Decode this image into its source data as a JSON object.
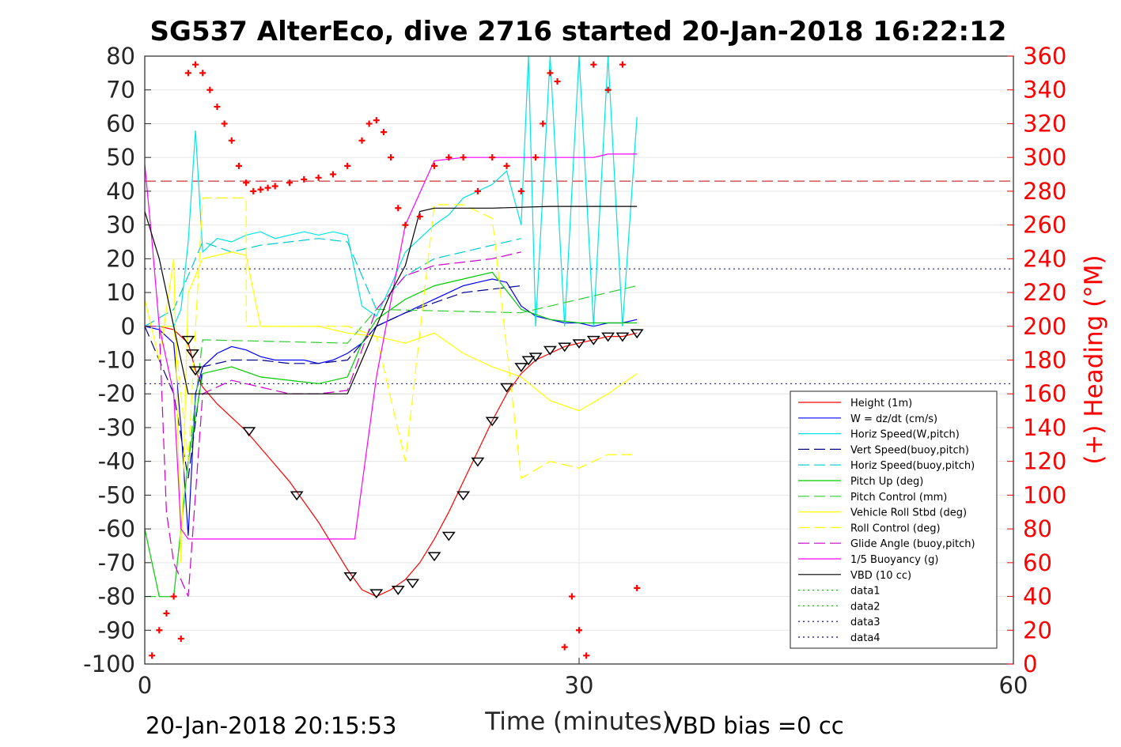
{
  "chart_data": {
    "type": "line",
    "title": "SG537 AlterEco, dive 2716 started 20-Jan-2018 16:22:12",
    "xlabel": "Time (minutes)",
    "ylabel_right": "(+) Heading (°M)",
    "xlim": [
      0,
      60
    ],
    "ylim": [
      -100,
      80
    ],
    "ylim_right": [
      0,
      360
    ],
    "x_ticks": [
      0,
      30,
      60
    ],
    "y_ticks": [
      80,
      70,
      60,
      50,
      40,
      30,
      20,
      10,
      0,
      -10,
      -20,
      -30,
      -40,
      -50,
      -60,
      -70,
      -80,
      -90,
      -100
    ],
    "y_ticks_right": [
      360,
      340,
      320,
      300,
      280,
      260,
      240,
      220,
      200,
      180,
      160,
      140,
      120,
      100,
      80,
      60,
      40,
      20,
      0
    ],
    "grid": true,
    "legend_position": "lower-right",
    "footer_left": "20-Jan-2018 20:15:53",
    "footer_right": "VBD bias =0 cc",
    "series": [
      {
        "name": "Height (1m)",
        "color": "#ff0000",
        "style": "solid",
        "x": [
          0,
          1,
          2,
          3,
          3.5,
          4,
          5,
          6,
          7,
          8,
          9,
          10,
          11,
          12,
          13,
          14,
          15,
          16,
          17,
          18,
          19,
          20,
          21,
          22,
          23,
          24,
          25,
          26,
          27,
          28,
          29,
          30,
          31,
          32,
          33,
          34
        ],
        "y": [
          0,
          0,
          -1,
          -5,
          -13,
          -18,
          -23,
          -27,
          -31,
          -36,
          -41,
          -46,
          -52,
          -58,
          -65,
          -72,
          -78,
          -80,
          -78,
          -75,
          -70,
          -63,
          -55,
          -46,
          -37,
          -28,
          -20,
          -14,
          -10,
          -8,
          -6,
          -5,
          -4,
          -3,
          -3,
          -2
        ]
      },
      {
        "name": "W = dz/dt (cm/s)",
        "color": "#0000ff",
        "style": "solid",
        "x": [
          0,
          1,
          2,
          2.5,
          3,
          3.5,
          4,
          5,
          6,
          7,
          8,
          9,
          10,
          11,
          12,
          13,
          14,
          15,
          16,
          17,
          18,
          19,
          20,
          21,
          22,
          23,
          24,
          25,
          26,
          27,
          28,
          29,
          30,
          31,
          32,
          33,
          34
        ],
        "y": [
          0,
          -1,
          -5,
          -30,
          -62,
          -20,
          -12,
          -8,
          -6,
          -7,
          -9,
          -10,
          -10,
          -10,
          -11,
          -10,
          -8,
          -5,
          0,
          2,
          4,
          6,
          8,
          10,
          12,
          13,
          14,
          13,
          6,
          3,
          2,
          1,
          1,
          0,
          1,
          1,
          2
        ]
      },
      {
        "name": "Horiz Speed(W,pitch)",
        "color": "#00e5e5",
        "style": "solid",
        "x": [
          0,
          1,
          2,
          2.5,
          3,
          3.5,
          4,
          5,
          6,
          7,
          8,
          9,
          10,
          11,
          12,
          13,
          14,
          15,
          16,
          17,
          18,
          19,
          20,
          21,
          22,
          23,
          24,
          25,
          26,
          26.5,
          27,
          28,
          29,
          30,
          31,
          32,
          33,
          34
        ],
        "y": [
          0,
          0,
          0,
          5,
          25,
          58,
          22,
          26,
          25,
          27,
          28,
          26,
          27,
          28,
          27,
          28,
          27,
          6,
          3,
          12,
          22,
          26,
          30,
          33,
          38,
          40,
          42,
          46,
          30,
          80,
          0,
          80,
          0,
          80,
          0,
          80,
          0,
          62
        ]
      },
      {
        "name": "Vert Speed(buoy,pitch)",
        "color": "#00008b",
        "style": "dashed",
        "x": [
          0,
          2,
          3,
          4,
          6,
          8,
          10,
          12,
          14,
          16,
          18,
          20,
          22,
          24,
          26
        ],
        "y": [
          0,
          -20,
          -45,
          -12,
          -10,
          -10,
          -11,
          -11,
          -10,
          0,
          4,
          7,
          10,
          11,
          12
        ]
      },
      {
        "name": "Horiz Speed(buoy,pitch)",
        "color": "#00cccc",
        "style": "dashed",
        "x": [
          0,
          2,
          3,
          4,
          6,
          8,
          10,
          12,
          14,
          16,
          18,
          20,
          22,
          24,
          26
        ],
        "y": [
          0,
          5,
          15,
          25,
          22,
          24,
          25,
          26,
          25,
          5,
          15,
          20,
          22,
          24,
          26
        ]
      },
      {
        "name": "Pitch Up (deg)",
        "color": "#00cc00",
        "style": "solid",
        "x": [
          0,
          1,
          2,
          3,
          4,
          6,
          8,
          10,
          12,
          14,
          15,
          16,
          18,
          20,
          22,
          24,
          26,
          28,
          30,
          32,
          34
        ],
        "y": [
          -60,
          -80,
          -80,
          -40,
          -14,
          -12,
          -15,
          -16,
          -17,
          -15,
          -5,
          2,
          8,
          12,
          14,
          16,
          5,
          2,
          1,
          1,
          1
        ]
      },
      {
        "name": "Pitch Control (mm)",
        "color": "#33cc33",
        "style": "dashed",
        "x": [
          0,
          2,
          3,
          4,
          14,
          15,
          16,
          26,
          34
        ],
        "y": [
          -80,
          -80,
          -40,
          -4,
          -5,
          0,
          5,
          4,
          12
        ]
      },
      {
        "name": "Vehicle Roll Stbd (deg)",
        "color": "#ffff00",
        "style": "solid",
        "x": [
          0,
          1,
          2,
          2.5,
          3,
          4,
          6,
          7,
          8,
          10,
          12,
          14,
          16,
          18,
          20,
          22,
          24,
          26,
          28,
          30,
          32,
          34
        ],
        "y": [
          8,
          -10,
          20,
          -70,
          10,
          20,
          22,
          21,
          0,
          0,
          0,
          -2,
          -3,
          -5,
          -2,
          -8,
          -12,
          -15,
          -22,
          -25,
          -20,
          -14
        ]
      },
      {
        "name": "Roll Control (deg)",
        "color": "#ffff00",
        "style": "dashed",
        "x": [
          0,
          2,
          3,
          4,
          7,
          7.01,
          14,
          16,
          18,
          20,
          22,
          24,
          26,
          28,
          30,
          32,
          34
        ],
        "y": [
          0,
          0,
          -40,
          38,
          38,
          0,
          0,
          -3,
          -40,
          36,
          36,
          32,
          -45,
          -40,
          -42,
          -38,
          -38
        ]
      },
      {
        "name": "Glide Angle (buoy,pitch)",
        "color": "#cc00cc",
        "style": "dashed",
        "x": [
          0,
          1,
          1.5,
          2,
          3,
          4,
          6,
          8,
          10,
          12,
          14,
          16,
          18,
          20,
          22,
          24,
          26
        ],
        "y": [
          0,
          0,
          -55,
          -70,
          -80,
          -20,
          -16,
          -18,
          -20,
          -20,
          -19,
          5,
          15,
          18,
          19,
          20,
          22
        ]
      },
      {
        "name": "1/5 Buoyancy (g)",
        "color": "#ff00ff",
        "style": "solid",
        "x": [
          0,
          0.5,
          1,
          2,
          2.5,
          3,
          14.5,
          16,
          18,
          20,
          22,
          24,
          26,
          28,
          30,
          31,
          32,
          34
        ],
        "y": [
          48,
          25,
          0,
          -20,
          -60,
          -63,
          -63,
          -15,
          30,
          49,
          50,
          50,
          50,
          50,
          50,
          50,
          51,
          51
        ]
      },
      {
        "name": "VBD (10 cc)",
        "color": "#000000",
        "style": "solid",
        "x": [
          0,
          1,
          2,
          3,
          14,
          15,
          16,
          17,
          18,
          19,
          20,
          24,
          28,
          32,
          34
        ],
        "y": [
          34,
          20,
          0,
          -20,
          -20,
          -10,
          0,
          10,
          18,
          34,
          35,
          35,
          35.5,
          35.5,
          35.5
        ]
      },
      {
        "name": "data1",
        "color": "#00cc00",
        "style": "dotted",
        "x": [],
        "y": []
      },
      {
        "name": "data2",
        "color": "#00cc00",
        "style": "dotted",
        "x": [],
        "y": []
      },
      {
        "name": "data3",
        "color": "#0000aa",
        "style": "dotted",
        "x": [],
        "y": []
      },
      {
        "name": "data4",
        "color": "#0000aa",
        "style": "dotted",
        "x": [],
        "y": []
      }
    ],
    "reference_lines": [
      {
        "axis": "y",
        "value": 43,
        "color": "#c00000",
        "style": "dashed"
      },
      {
        "axis": "y",
        "value": 17,
        "color": "#0000aa",
        "style": "dotted"
      },
      {
        "axis": "y",
        "value": -17,
        "color": "#0000aa",
        "style": "dotted"
      }
    ],
    "heading_points": {
      "color": "#ff0000",
      "x": [
        0.5,
        1,
        1.5,
        2,
        2.5,
        3,
        3.5,
        4,
        4.5,
        5,
        5.5,
        6,
        6.5,
        7,
        7.5,
        8,
        8.5,
        9,
        10,
        11,
        12,
        13,
        14,
        15,
        15.5,
        16,
        16.5,
        17,
        17.5,
        18,
        19,
        20,
        21,
        22,
        23,
        24,
        25,
        26,
        27,
        27.5,
        28,
        28.5,
        29,
        29.5,
        30,
        30.5,
        31,
        32,
        33,
        34
      ],
      "y": [
        5,
        20,
        30,
        40,
        15,
        350,
        355,
        350,
        340,
        330,
        320,
        310,
        295,
        285,
        280,
        281,
        282,
        283,
        285,
        287,
        288,
        290,
        295,
        310,
        320,
        322,
        315,
        300,
        270,
        260,
        265,
        295,
        300,
        300,
        280,
        300,
        295,
        280,
        300,
        320,
        350,
        345,
        10,
        40,
        20,
        5,
        355,
        340,
        355,
        45
      ]
    },
    "depth_markers": {
      "x": [
        3,
        3.3,
        3.5,
        7.2,
        10.5,
        14.2,
        16,
        17.5,
        18.5,
        20,
        21,
        22,
        23,
        24,
        25,
        26,
        26.5,
        27,
        28,
        29,
        30,
        31,
        32,
        33,
        34
      ],
      "y": [
        -4,
        -8,
        -13,
        -31,
        -50,
        -74,
        -79,
        -78,
        -76,
        -68,
        -62,
        -50,
        -40,
        -28,
        -18,
        -12,
        -10,
        -9,
        -7,
        -6,
        -5,
        -4,
        -3,
        -3,
        -2
      ]
    }
  }
}
